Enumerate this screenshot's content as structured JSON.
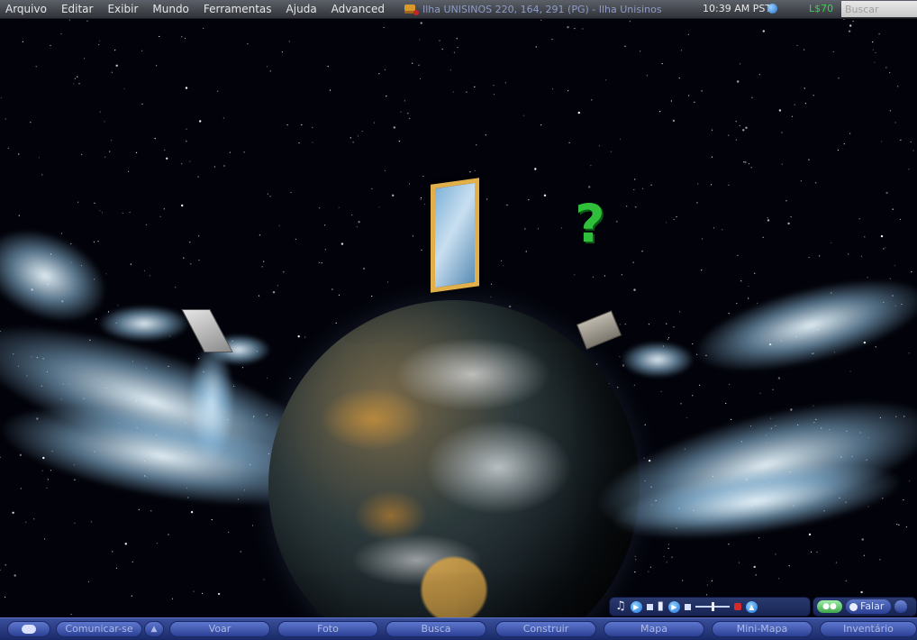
{
  "menu": {
    "items": [
      "Arquivo",
      "Editar",
      "Exibir",
      "Mundo",
      "Ferramentas",
      "Ajuda",
      "Advanced"
    ]
  },
  "status": {
    "location": "Ilha UNISINOS 220, 164, 291 (PG) - Ilha Unisinos",
    "time": "10:39 AM PST",
    "balance": "L$70",
    "search_placeholder": "Buscar"
  },
  "scene": {
    "help_marker": "?"
  },
  "voice": {
    "talk_label": "Falar"
  },
  "toolbar": {
    "communicate": "Comunicar-se",
    "fly": "Voar",
    "snapshot": "Foto",
    "search": "Busca",
    "build": "Construir",
    "map": "Mapa",
    "minimap": "Mini-Mapa",
    "inventory": "Inventário"
  },
  "icons": {
    "parcel": "parcel-icon",
    "globe": "globe-icon",
    "music": "music-note-icon",
    "media": "media-icon",
    "chat": "chat-bubble-icon"
  },
  "colors": {
    "toolbar_blue": "#2b3f93",
    "balance_green": "#2fd84b",
    "help_marker_green": "#2fbf3a",
    "location_text": "#8f9cc7"
  }
}
